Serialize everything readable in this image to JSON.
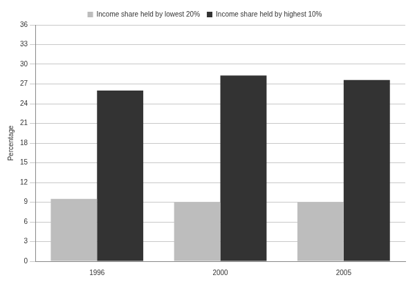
{
  "chart_data": {
    "type": "bar",
    "categories": [
      "1996",
      "2000",
      "2005"
    ],
    "series": [
      {
        "name": "Income share held by lowest 20%",
        "color": "#bdbdbd",
        "values": [
          9.5,
          9.0,
          9.0
        ]
      },
      {
        "name": "Income share held by highest 10%",
        "color": "#333333",
        "values": [
          26.0,
          28.3,
          27.6
        ]
      }
    ],
    "y_label": "Percentage",
    "ylim": [
      0,
      36
    ],
    "yticks": [
      0,
      3,
      6,
      9,
      12,
      15,
      18,
      21,
      24,
      27,
      30,
      33,
      36
    ],
    "grid": true,
    "legend": "top"
  }
}
